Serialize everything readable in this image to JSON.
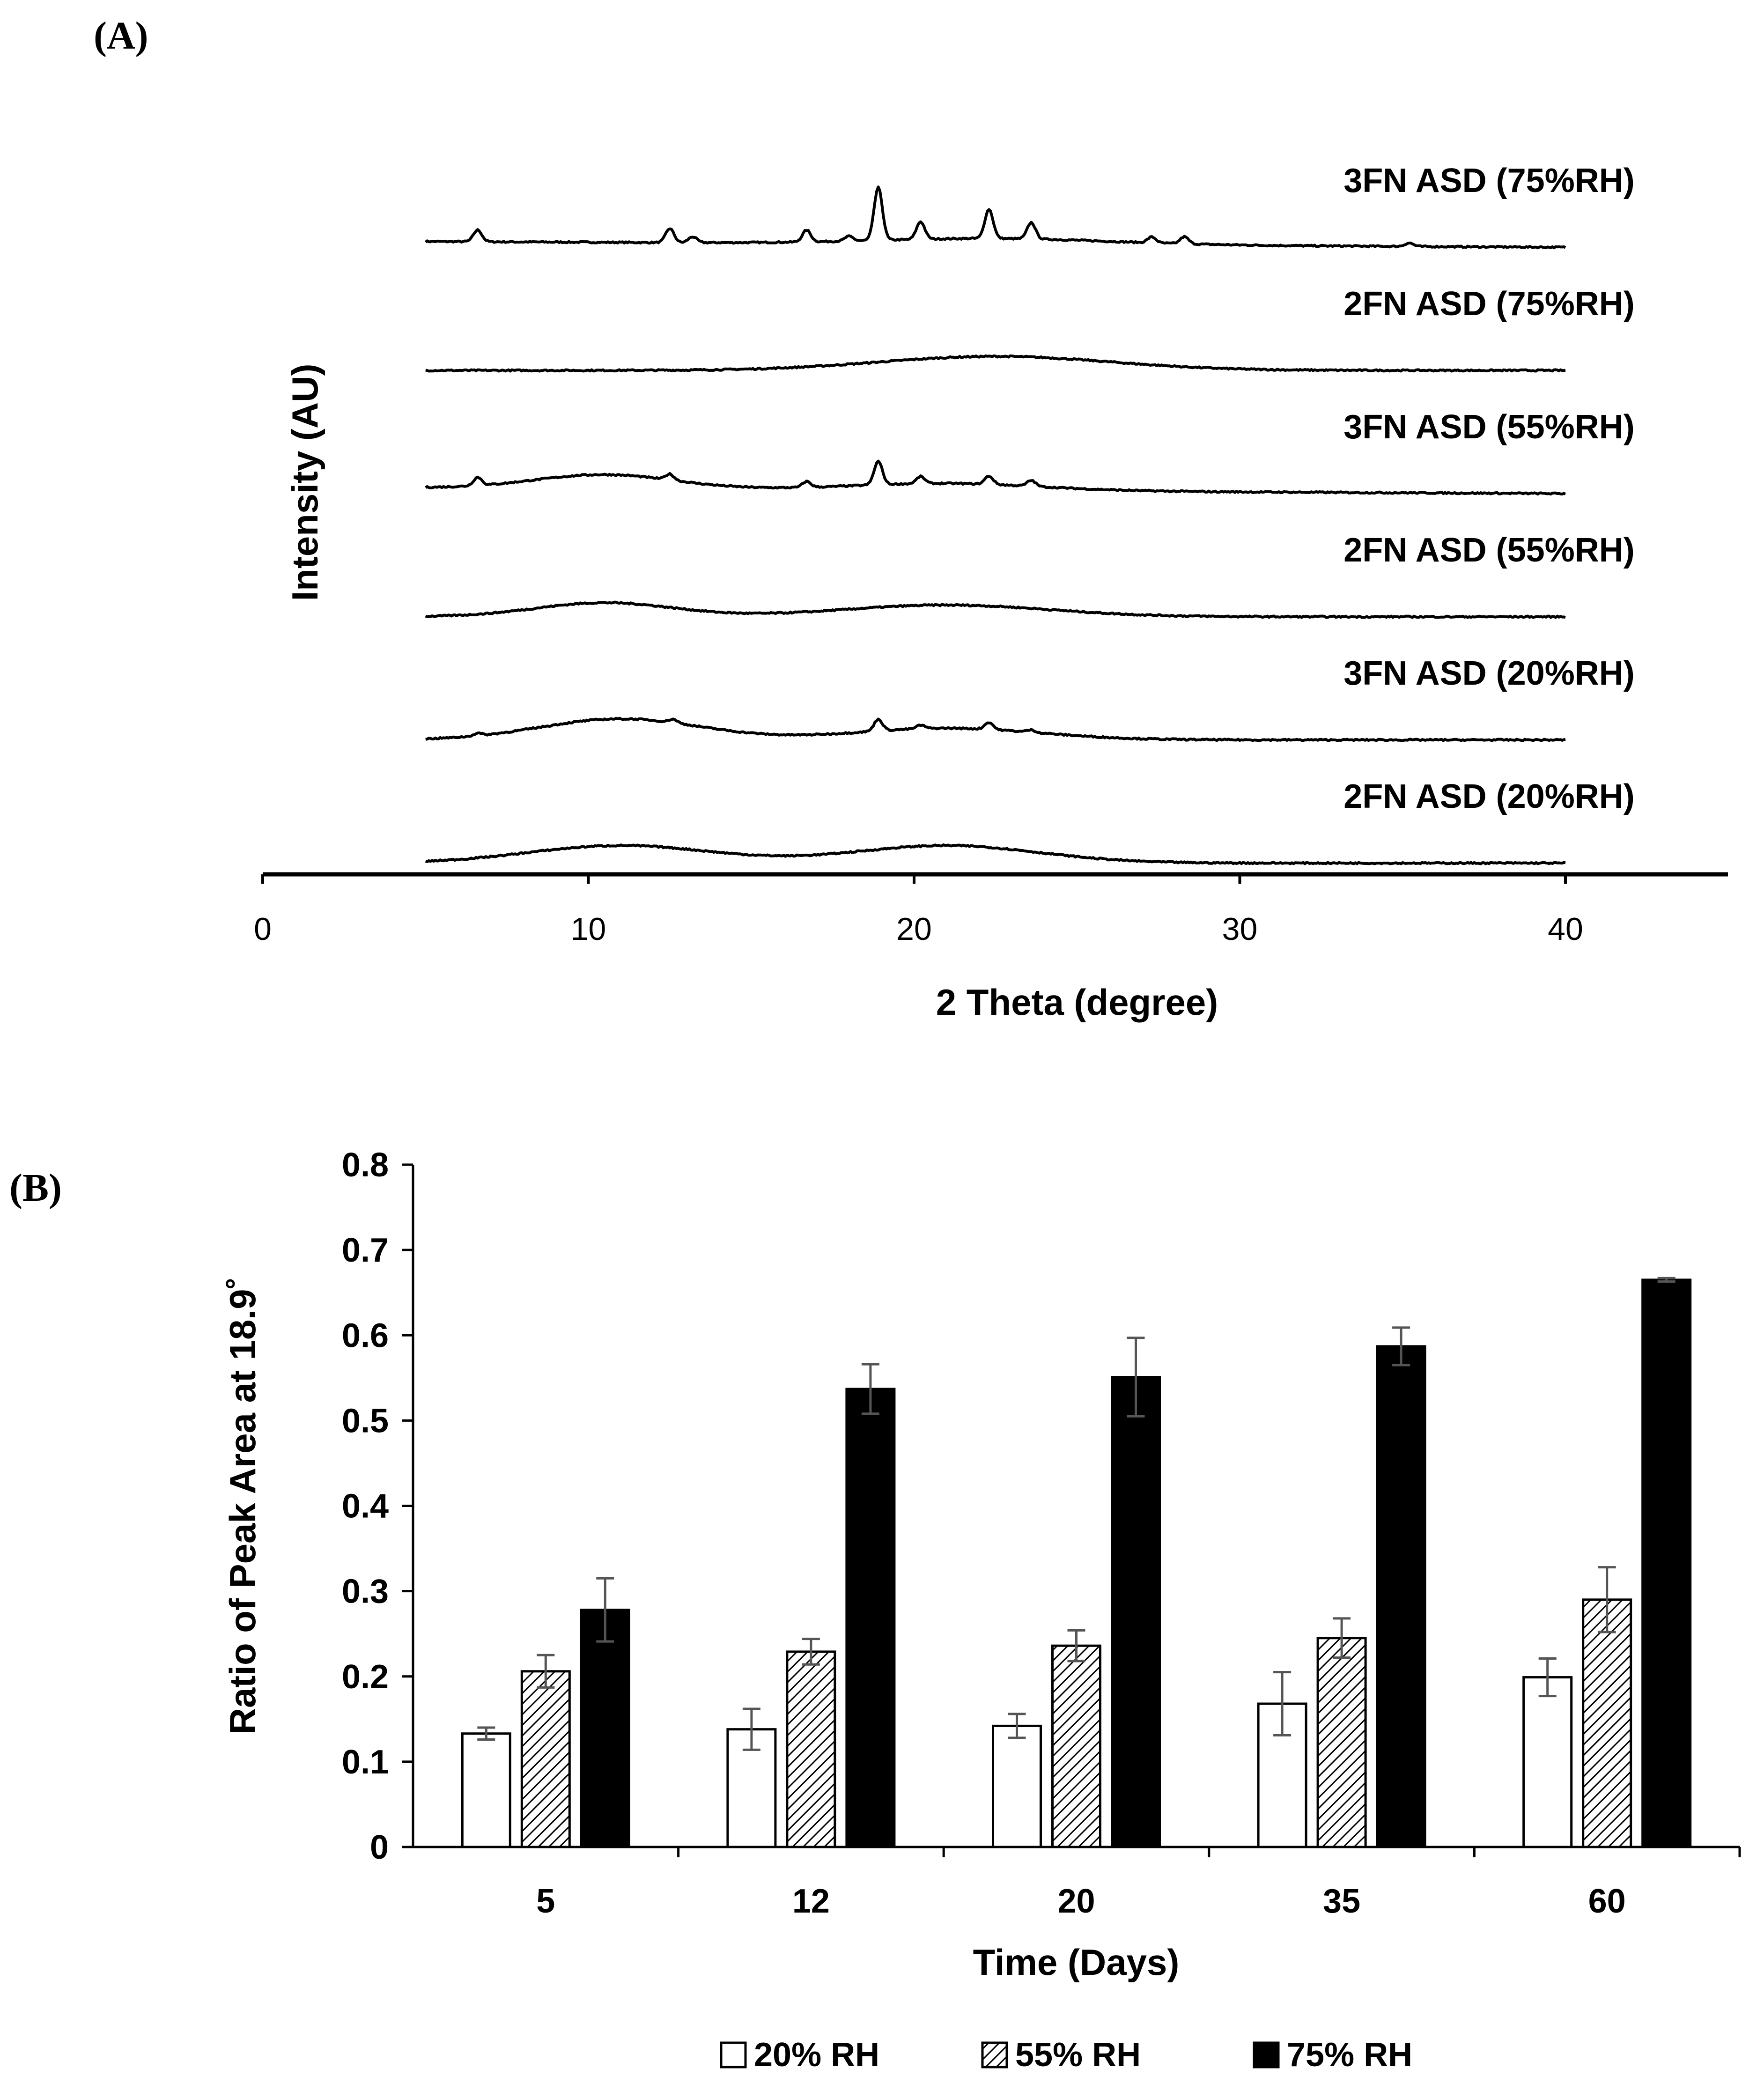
{
  "chart_data": [
    {
      "panel_label": "(A)",
      "type": "line",
      "xlabel": "2 Theta (degree)",
      "ylabel": "Intensity (AU)",
      "xlim": [
        0,
        45
      ],
      "xticks": [
        "0",
        "10",
        "20",
        "30",
        "40"
      ],
      "xtick_values": [
        0,
        10,
        20,
        30,
        40
      ],
      "x_range": [
        5,
        40
      ],
      "series": [
        {
          "name": "3FN ASD (75%RH)",
          "offset": 5,
          "base_start": 0.05,
          "base_end": 0.0,
          "halos": [
            {
              "center": 22.5,
              "height": 0.05,
              "width": 5
            }
          ],
          "peaks": [
            [
              6.6,
              0.1
            ],
            [
              12.5,
              0.12
            ],
            [
              13.2,
              0.05
            ],
            [
              16.7,
              0.1
            ],
            [
              18.0,
              0.04
            ],
            [
              18.9,
              0.45
            ],
            [
              20.2,
              0.15
            ],
            [
              22.3,
              0.25
            ],
            [
              23.6,
              0.14
            ],
            [
              27.3,
              0.05
            ],
            [
              28.3,
              0.06
            ],
            [
              35.2,
              0.03
            ]
          ]
        },
        {
          "name": "2FN ASD (75%RH)",
          "offset": 4,
          "base_start": 0.0,
          "base_end": 0.0,
          "halos": [
            {
              "center": 22.5,
              "height": 0.12,
              "width": 5
            }
          ],
          "peaks": []
        },
        {
          "name": "3FN ASD (55%RH)",
          "offset": 3,
          "base_start": 0.05,
          "base_end": 0.0,
          "halos": [
            {
              "center": 10.5,
              "height": 0.12,
              "width": 3
            },
            {
              "center": 21,
              "height": 0.06,
              "width": 4
            }
          ],
          "peaks": [
            [
              6.6,
              0.07
            ],
            [
              12.5,
              0.05
            ],
            [
              16.7,
              0.05
            ],
            [
              18.9,
              0.2
            ],
            [
              20.2,
              0.06
            ],
            [
              22.3,
              0.07
            ],
            [
              23.6,
              0.05
            ]
          ]
        },
        {
          "name": "2FN ASD (55%RH)",
          "offset": 2,
          "base_start": 0.0,
          "base_end": 0.0,
          "halos": [
            {
              "center": 10.5,
              "height": 0.12,
              "width": 3
            },
            {
              "center": 21,
              "height": 0.1,
              "width": 4.5
            }
          ],
          "peaks": []
        },
        {
          "name": "3FN ASD (20%RH)",
          "offset": 1,
          "base_start": 0.0,
          "base_end": 0.0,
          "halos": [
            {
              "center": 11,
              "height": 0.18,
              "width": 3.5
            },
            {
              "center": 21,
              "height": 0.1,
              "width": 4
            }
          ],
          "peaks": [
            [
              6.6,
              0.02
            ],
            [
              12.6,
              0.03
            ],
            [
              18.9,
              0.1
            ],
            [
              20.2,
              0.03
            ],
            [
              22.3,
              0.06
            ],
            [
              23.6,
              0.02
            ]
          ]
        },
        {
          "name": "2FN ASD (20%RH)",
          "offset": 0,
          "base_start": 0.0,
          "base_end": 0.0,
          "halos": [
            {
              "center": 11,
              "height": 0.15,
              "width": 4
            },
            {
              "center": 21,
              "height": 0.15,
              "width": 4
            }
          ],
          "peaks": []
        }
      ]
    },
    {
      "panel_label": "(B)",
      "type": "bar",
      "xlabel": "Time (Days)",
      "ylabel": "Ratio of Peak Area at 18.9˚",
      "ylim": [
        0,
        0.8
      ],
      "yticks": [
        "0",
        "0.1",
        "0.2",
        "0.3",
        "0.4",
        "0.5",
        "0.6",
        "0.7",
        "0.8"
      ],
      "ytick_values": [
        0,
        0.1,
        0.2,
        0.3,
        0.4,
        0.5,
        0.6,
        0.7,
        0.8
      ],
      "categories": [
        "5",
        "12",
        "20",
        "35",
        "60"
      ],
      "series": [
        {
          "name": "20% RH",
          "fill": "open",
          "values": [
            0.133,
            0.138,
            0.142,
            0.168,
            0.199
          ],
          "errors": [
            0.007,
            0.024,
            0.014,
            0.037,
            0.022
          ]
        },
        {
          "name": "55% RH",
          "fill": "hatched",
          "values": [
            0.206,
            0.229,
            0.236,
            0.245,
            0.29
          ],
          "errors": [
            0.019,
            0.015,
            0.018,
            0.023,
            0.038
          ]
        },
        {
          "name": "75% RH",
          "fill": "solid",
          "values": [
            0.278,
            0.537,
            0.551,
            0.587,
            0.665
          ],
          "errors": [
            0.037,
            0.029,
            0.046,
            0.022,
            0.002
          ]
        }
      ],
      "legend_position": "bottom"
    }
  ],
  "colors": {
    "ink": "#000000",
    "error_bar": "#555555",
    "background": "#ffffff"
  }
}
